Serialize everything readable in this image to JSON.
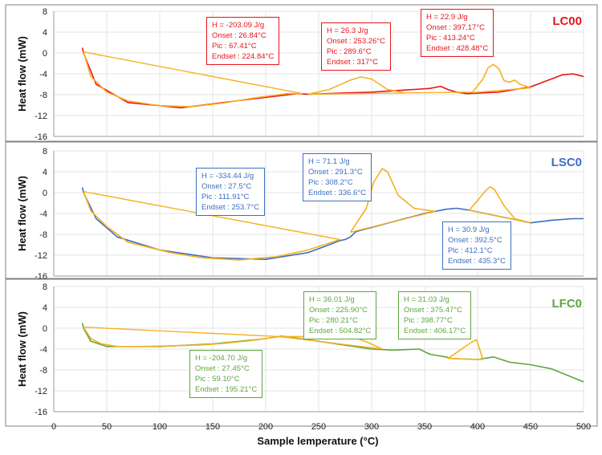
{
  "chart_data": {
    "type": "line",
    "xlabel": "Sample lemperature (°C)",
    "xlim": [
      0,
      500
    ],
    "x_ticks": [
      "0",
      "50",
      "100",
      "150",
      "200",
      "250",
      "300",
      "350",
      "400",
      "450",
      "500"
    ],
    "y_ticks": [
      "8",
      "4",
      "0",
      "-4",
      "-8",
      "-12",
      "-16"
    ],
    "colors": {
      "baseline": "#f5b120",
      "frame": "#808080",
      "grid": "#e3e3e3"
    },
    "panels": [
      {
        "name": "LC00",
        "ylabel": "Heat flow (mW)",
        "ylim": [
          -16,
          8
        ],
        "color": "#e8141c",
        "curve": {
          "x": [
            27,
            28,
            40,
            70,
            120,
            180,
            230,
            240,
            300,
            340,
            355,
            365,
            372,
            380,
            390,
            420,
            450,
            480,
            490,
            500
          ],
          "y": [
            1.0,
            0.0,
            -6.0,
            -9.5,
            -10.5,
            -9.0,
            -7.8,
            -7.9,
            -7.5,
            -7.0,
            -6.8,
            -6.4,
            -7.0,
            -7.5,
            -7.8,
            -7.5,
            -6.5,
            -4.2,
            -4.0,
            -4.5
          ]
        },
        "baselines": [
          {
            "x": [
              28,
              235
            ],
            "y": [
              0.2,
              -7.8
            ]
          },
          {
            "x": [
              240,
              395
            ],
            "y": [
              -7.9,
              -7.5
            ]
          },
          {
            "x": [
              395,
              450
            ],
            "y": [
              -7.6,
              -6.7
            ]
          }
        ],
        "peaks": [
          {
            "x": [
              28,
              35,
              50,
              70,
              100,
              130,
              160,
              190,
              220,
              235
            ],
            "y": [
              0.2,
              -4.5,
              -7.5,
              -9.2,
              -10.1,
              -10.3,
              -9.6,
              -8.6,
              -7.8,
              -7.8
            ]
          },
          {
            "x": [
              240,
              260,
              280,
              290,
              300,
              315,
              330
            ],
            "y": [
              -7.9,
              -7.0,
              -5.2,
              -4.6,
              -5.0,
              -7.0,
              -7.6
            ]
          },
          {
            "x": [
              395,
              405,
              410,
              415,
              420,
              425,
              430,
              435,
              440,
              450
            ],
            "y": [
              -7.6,
              -5.0,
              -2.8,
              -2.2,
              -3.0,
              -5.3,
              -5.6,
              -5.2,
              -6.0,
              -6.7
            ]
          }
        ],
        "annotations": [
          {
            "lines": [
              "H = -203.09 J/g",
              "Onset : 26.84°C",
              "Pic : 67.41°C",
              "Endset : 224.84°C"
            ]
          },
          {
            "lines": [
              "H = 26.3 J/g",
              "Onset : 253.26°C",
              "Pic : 289.6°C",
              "Endset : 317°C"
            ]
          },
          {
            "lines": [
              "H = 22.9 J/g",
              "Onset : 397.17°C",
              "Pic : 413.24°C",
              "Endset : 428.48°C"
            ]
          }
        ]
      },
      {
        "name": "LSC0",
        "ylabel": "Heat flow (mW)",
        "ylim": [
          -16,
          8
        ],
        "color": "#3d6fbf",
        "curve": {
          "x": [
            27,
            28,
            40,
            60,
            100,
            150,
            200,
            240,
            260,
            270,
            275,
            280,
            285,
            290,
            350,
            370,
            380,
            390,
            450,
            470,
            490,
            500
          ],
          "y": [
            1.0,
            0.0,
            -5.0,
            -8.5,
            -11.0,
            -12.5,
            -12.8,
            -11.5,
            -10.0,
            -9.2,
            -9.0,
            -8.5,
            -7.5,
            -7.2,
            -4.0,
            -3.2,
            -3.0,
            -3.3,
            -5.8,
            -5.3,
            -5.0,
            -5.0
          ]
        },
        "baselines": [
          {
            "x": [
              28,
              270
            ],
            "y": [
              0.2,
              -9.0
            ]
          },
          {
            "x": [
              280,
              360
            ],
            "y": [
              -7.6,
              -3.6
            ]
          },
          {
            "x": [
              392,
              450
            ],
            "y": [
              -3.4,
              -5.8
            ]
          }
        ],
        "peaks": [
          {
            "x": [
              28,
              35,
              50,
              70,
              90,
              110,
              140,
              175,
              210,
              240,
              270
            ],
            "y": [
              0.2,
              -3.5,
              -6.5,
              -9.5,
              -10.5,
              -11.5,
              -12.5,
              -12.9,
              -12.3,
              -11.0,
              -9.0
            ]
          },
          {
            "x": [
              280,
              295,
              302,
              310,
              315,
              325,
              340,
              360
            ],
            "y": [
              -7.6,
              -3.0,
              2.0,
              4.6,
              4.0,
              -0.5,
              -3.0,
              -3.6
            ]
          },
          {
            "x": [
              392,
              400,
              408,
              412,
              416,
              425,
              435,
              450
            ],
            "y": [
              -3.4,
              -1.5,
              0.5,
              1.1,
              0.6,
              -2.5,
              -5.0,
              -5.8
            ]
          }
        ],
        "annotations": [
          {
            "lines": [
              "H = -334.44 J/g",
              "Onset : 27.5°C",
              "Pic : 111.91°C",
              "Endset : 253.7°C"
            ]
          },
          {
            "lines": [
              "H = 71.1 J/g",
              "Onset : 291.3°C",
              "Pic : 308.2°C",
              "Endset : 336.6°C"
            ]
          },
          {
            "lines": [
              "H = 30.9 J/g",
              "Onset : 392.5°C",
              "Plc : 412.1°C",
              "Endset : 435.3°C"
            ]
          }
        ]
      },
      {
        "name": "LFC0",
        "ylabel": "Heat flow (mW)",
        "ylim": [
          -16,
          8
        ],
        "color": "#5ea640",
        "curve": {
          "x": [
            27,
            28,
            35,
            50,
            100,
            150,
            200,
            215,
            250,
            300,
            320,
            345,
            355,
            370,
            375,
            400,
            415,
            430,
            450,
            470,
            500
          ],
          "y": [
            1.0,
            0.0,
            -2.5,
            -3.5,
            -3.5,
            -3.0,
            -2.0,
            -1.5,
            -2.5,
            -4.0,
            -4.2,
            -4.0,
            -5.0,
            -5.5,
            -5.8,
            -6.0,
            -5.5,
            -6.5,
            -7.0,
            -7.8,
            -10.3
          ]
        },
        "baselines": [
          {
            "x": [
              28,
              213
            ],
            "y": [
              0.2,
              -1.6
            ]
          },
          {
            "x": [
              213,
              310
            ],
            "y": [
              -1.6,
              -4.0
            ]
          },
          {
            "x": [
              372,
              405
            ],
            "y": [
              -5.8,
              -6.0
            ]
          }
        ],
        "peaks": [
          {
            "x": [
              28,
              35,
              45,
              60,
              80,
              110,
              140,
              160,
              185,
              213
            ],
            "y": [
              0.2,
              -2.0,
              -3.0,
              -3.5,
              -3.5,
              -3.4,
              -3.2,
              -2.9,
              -2.4,
              -1.6
            ]
          },
          {
            "x": [
              213,
              240,
              260,
              280,
              295,
              310
            ],
            "y": [
              -1.6,
              -1.6,
              -1.4,
              -1.5,
              -2.6,
              -4.0
            ]
          },
          {
            "x": [
              372,
              385,
              394,
              399,
              405
            ],
            "y": [
              -5.8,
              -4.0,
              -2.7,
              -2.2,
              -6.0
            ]
          }
        ],
        "annotations": [
          {
            "lines": [
              "H = -204.70 J/g",
              "Onset : 27.45°C",
              "Pic : 59.10°C",
              "Endset : 195.21°C"
            ]
          },
          {
            "lines": [
              "H = 36.01 J/g",
              "Onset : 225.90°C",
              "Pic : 280.21°C",
              "Endset : 504.82°C"
            ]
          },
          {
            "lines": [
              "H = 31.03 J/g",
              "Onset : 375.47°C",
              "Pic : 398.77°C",
              "Endset : 406.17°C"
            ]
          }
        ]
      }
    ]
  }
}
